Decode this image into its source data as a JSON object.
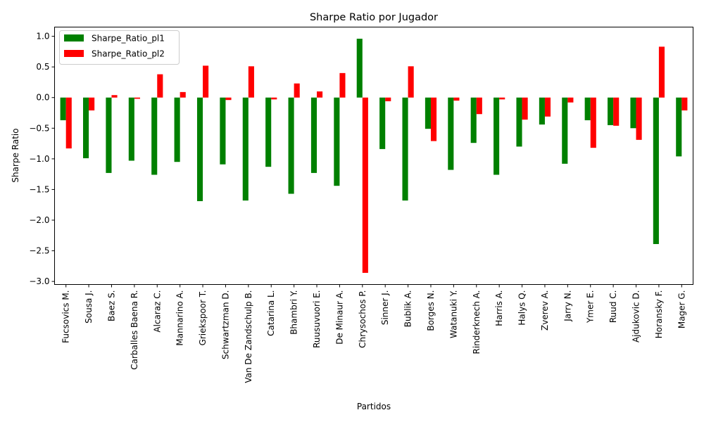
{
  "chart_data": {
    "type": "bar",
    "title": "Sharpe Ratio por Jugador",
    "xlabel": "Partidos",
    "ylabel": "Sharpe Ratio",
    "ylim": [
      -3.05,
      1.15
    ],
    "yticks": [
      1.0,
      0.5,
      0.0,
      -0.5,
      -1.0,
      -1.5,
      -2.0,
      -2.5,
      -3.0
    ],
    "ytick_labels": [
      "1.0",
      "0.5",
      "0.0",
      "−0.5",
      "−1.0",
      "−1.5",
      "−2.0",
      "−2.5",
      "−3.0"
    ],
    "grid": false,
    "legend_position": "top-left",
    "categories": [
      "Fucsovics M.",
      "Sousa J.",
      "Baez S.",
      "Carballes Baena R.",
      "Alcaraz C.",
      "Mannarino A.",
      "Griekspoor T.",
      "Schwartzman D.",
      "Van De Zandschulp B.",
      "Catarina L.",
      "Bhambri Y.",
      "Ruusuvuori E.",
      "De Minaur A.",
      "Chrysochos P.",
      "Sinner J.",
      "Bublik A.",
      "Borges N.",
      "Watanuki Y.",
      "Rinderknech A.",
      "Harris A.",
      "Halys Q.",
      "Zverev A.",
      "Jarry N.",
      "Ymer E.",
      "Ruud C.",
      "Ajdukovic D.",
      "Horansky F.",
      "Mager G."
    ],
    "series": [
      {
        "name": "Sharpe_Ratio_pl1",
        "color": "#008000",
        "values": [
          -0.37,
          -0.99,
          -1.23,
          -1.03,
          -1.26,
          -1.05,
          -1.69,
          -1.09,
          -1.68,
          -1.13,
          -1.57,
          -1.23,
          -1.44,
          0.96,
          -0.84,
          -1.68,
          -0.51,
          -1.18,
          -0.74,
          -1.26,
          -0.8,
          -0.44,
          -1.08,
          -0.37,
          -0.45,
          -0.5,
          -2.39,
          -0.96
        ]
      },
      {
        "name": "Sharpe_Ratio_pl2",
        "color": "#ff0000",
        "values": [
          -0.83,
          -0.21,
          0.04,
          -0.02,
          0.38,
          0.09,
          0.52,
          -0.04,
          0.51,
          -0.03,
          0.23,
          0.1,
          0.4,
          -2.86,
          -0.06,
          0.51,
          -0.71,
          -0.05,
          -0.27,
          -0.03,
          -0.36,
          -0.31,
          -0.08,
          -0.82,
          -0.46,
          -0.69,
          0.83,
          -0.21
        ]
      }
    ]
  }
}
